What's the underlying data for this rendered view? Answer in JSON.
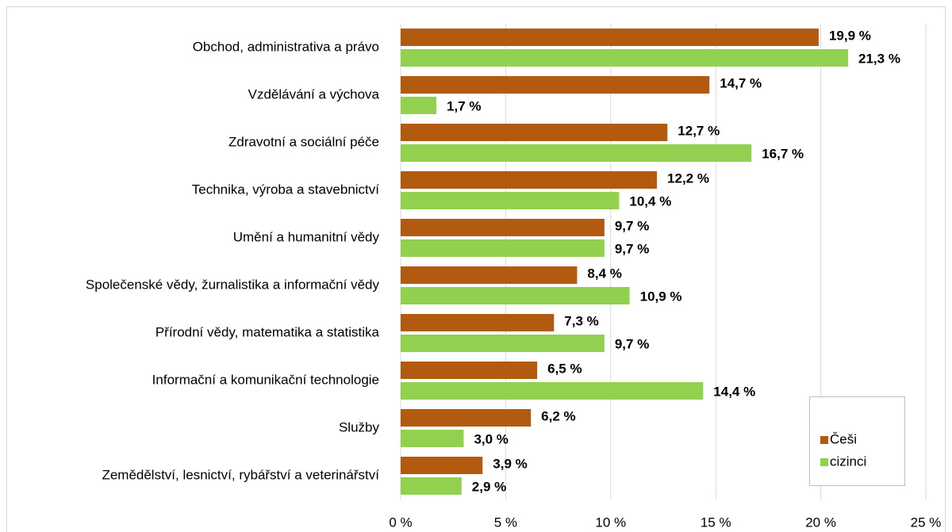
{
  "chart_data": {
    "type": "bar",
    "orientation": "horizontal",
    "categories": [
      "Obchod, administrativa a právo",
      "Vzdělávání a výchova",
      "Zdravotní a sociální péče",
      "Technika, výroba a stavebnictví",
      "Umění a humanitní vědy",
      "Společenské vědy, žurnalistika a informační vědy",
      "Přírodní vědy, matematika a statistika",
      "Informační a komunikační technologie",
      "Služby",
      "Zemědělství, lesnictví, rybářství a veterinářství"
    ],
    "series": [
      {
        "name": "Češi",
        "color": "#b35a11",
        "values": [
          19.9,
          14.7,
          12.7,
          12.2,
          9.7,
          8.4,
          7.3,
          6.5,
          6.2,
          3.9
        ],
        "value_labels": [
          "19,9 %",
          "14,7 %",
          "12,7 %",
          "12,2 %",
          "9,7 %",
          "8,4 %",
          "7,3 %",
          "6,5 %",
          "6,2 %",
          "3,9 %"
        ]
      },
      {
        "name": "cizinci",
        "color": "#92d050",
        "values": [
          21.3,
          1.7,
          16.7,
          10.4,
          9.7,
          10.9,
          9.7,
          14.4,
          3.0,
          2.9
        ],
        "value_labels": [
          "21,3 %",
          "1,7 %",
          "16,7 %",
          "10,4 %",
          "9,7 %",
          "10,9 %",
          "9,7 %",
          "14,4 %",
          "3,0 %",
          "2,9 %"
        ]
      }
    ],
    "xlim": [
      0,
      25
    ],
    "xticks": [
      {
        "value": 0,
        "label": "0 %"
      },
      {
        "value": 5,
        "label": "5 %"
      },
      {
        "value": 10,
        "label": "10 %"
      },
      {
        "value": 15,
        "label": "15 %"
      },
      {
        "value": 20,
        "label": "20 %"
      },
      {
        "value": 25,
        "label": "25 %"
      }
    ],
    "grid": true,
    "legend": "lower right"
  }
}
